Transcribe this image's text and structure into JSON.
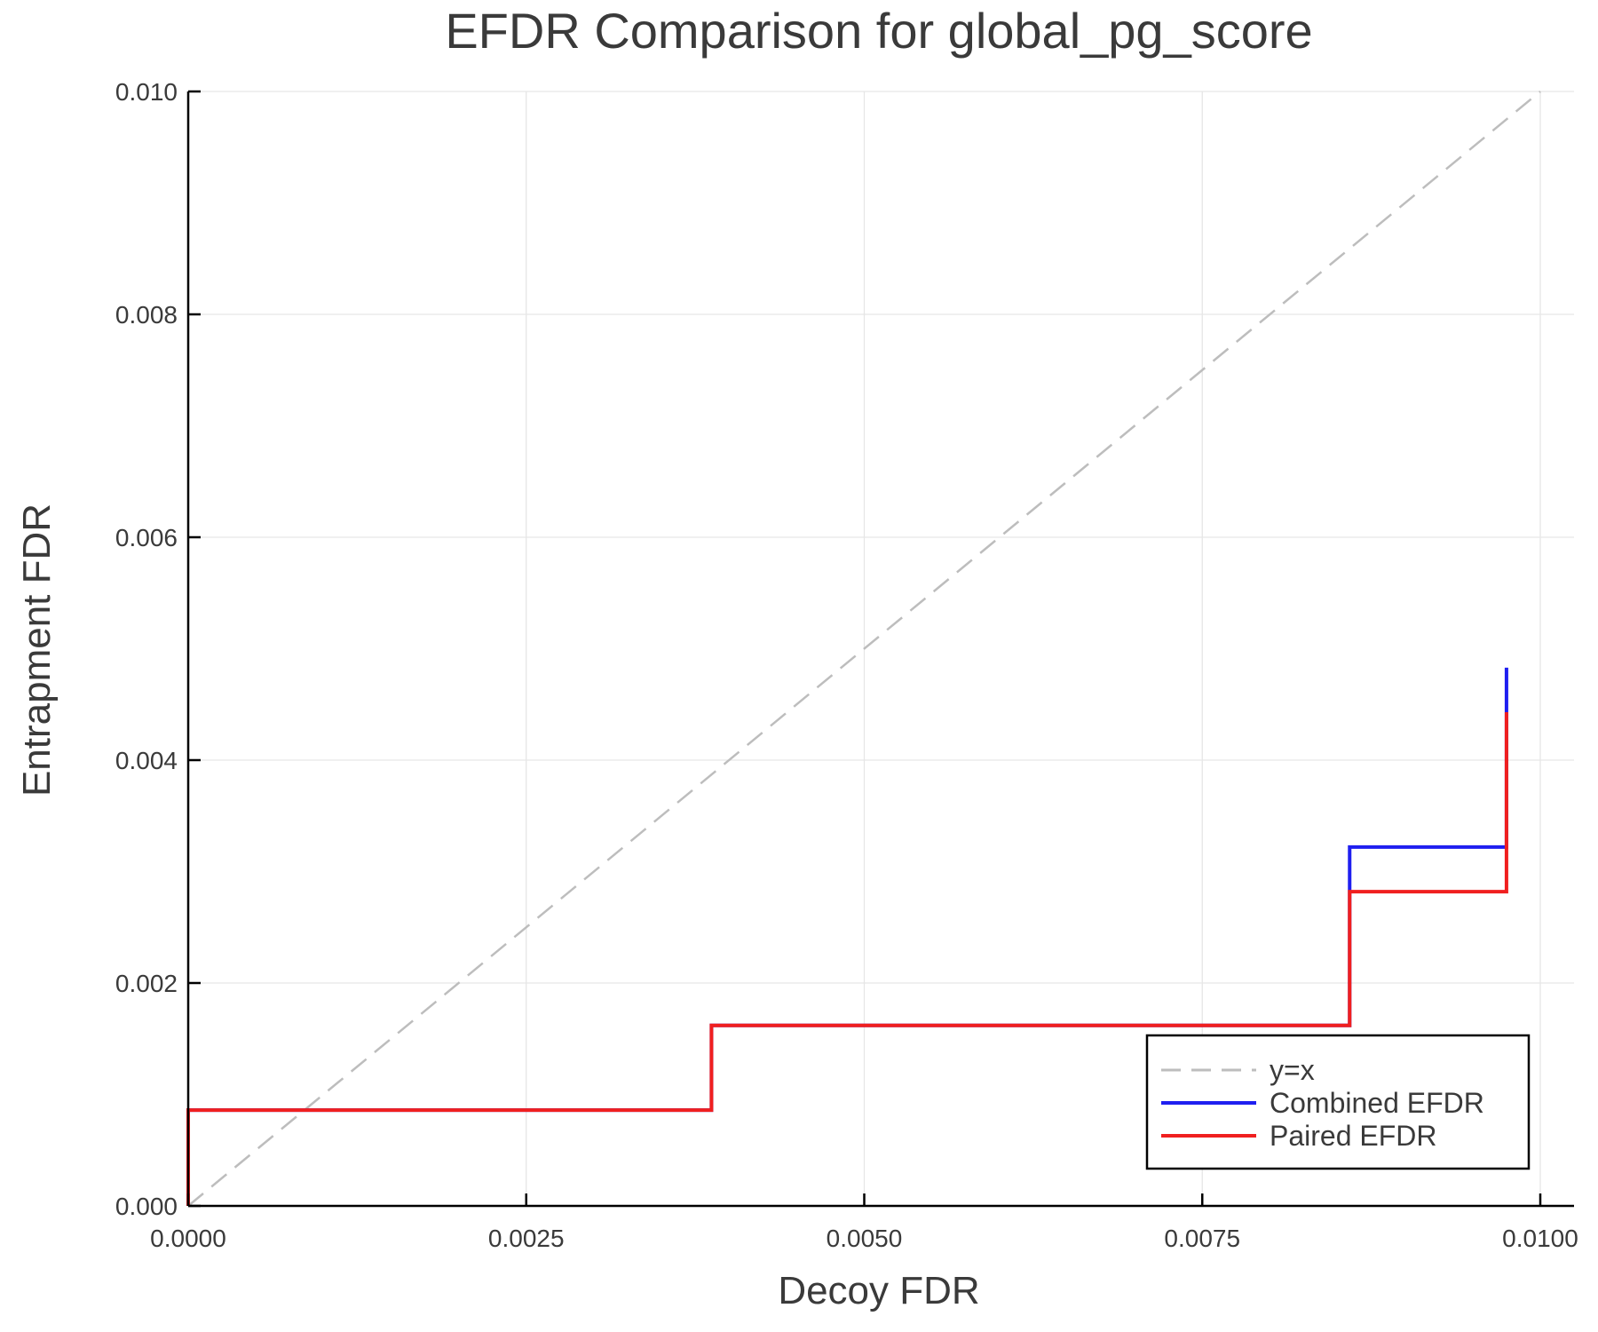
{
  "chart_data": {
    "type": "line",
    "title": "EFDR Comparison for global_pg_score",
    "xlabel": "Decoy FDR",
    "ylabel": "Entrapment FDR",
    "xlim": [
      0.0,
      0.01
    ],
    "ylim": [
      0.0,
      0.01
    ],
    "xticks": [
      0.0,
      0.0025,
      0.005,
      0.0075,
      0.01
    ],
    "xtick_labels": [
      "0.0000",
      "0.0025",
      "0.0050",
      "0.0075",
      "0.0100"
    ],
    "yticks": [
      0.0,
      0.002,
      0.004,
      0.006,
      0.008,
      0.01
    ],
    "ytick_labels": [
      "0.000",
      "0.002",
      "0.004",
      "0.006",
      "0.008",
      "0.010"
    ],
    "grid": true,
    "legend_position": "bottom-right",
    "series": [
      {
        "name": "y=x",
        "style": "dashed",
        "color": "#bdbdbd",
        "x": [
          0.0,
          0.01
        ],
        "y": [
          0.0,
          0.01
        ]
      },
      {
        "name": "Combined EFDR",
        "style": "step",
        "color": "#1f1ff0",
        "x": [
          0.0,
          0.0,
          0.00387,
          0.00387,
          0.00859,
          0.00859,
          0.00975,
          0.00975
        ],
        "y": [
          0.0,
          0.00086,
          0.00086,
          0.00162,
          0.00162,
          0.00322,
          0.00322,
          0.00483
        ]
      },
      {
        "name": "Paired EFDR",
        "style": "step",
        "color": "#f01f1f",
        "x": [
          0.0,
          0.0,
          0.00387,
          0.00387,
          0.00859,
          0.00859,
          0.00975,
          0.00975
        ],
        "y": [
          0.0,
          0.00086,
          0.00086,
          0.00162,
          0.00162,
          0.00282,
          0.00282,
          0.00443
        ]
      }
    ]
  }
}
